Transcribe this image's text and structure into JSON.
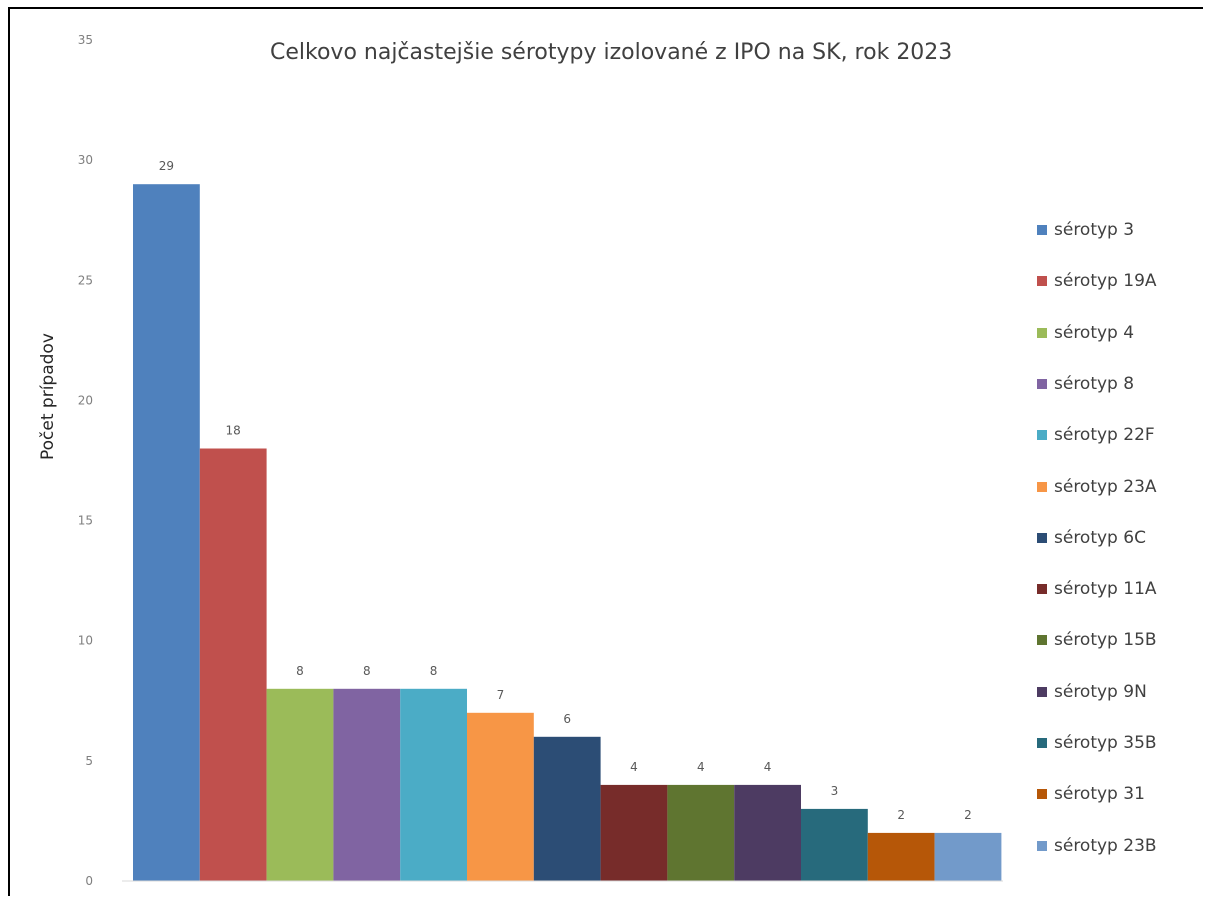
{
  "chart_data": {
    "type": "bar",
    "title": "Celkovo najčastejšie sérotypy izolované z IPO na SK, rok 2023",
    "ylabel": "Počet prípadov",
    "xlabel": "",
    "ylim": [
      0,
      35
    ],
    "yticks": [
      "0",
      "5",
      "10",
      "15",
      "20",
      "25",
      "30",
      "35"
    ],
    "grid": false,
    "legend_position": "right",
    "series": [
      {
        "name": "sérotyp 3",
        "value": 29,
        "color": "#4F81BD"
      },
      {
        "name": "sérotyp 19A",
        "value": 18,
        "color": "#C0504D"
      },
      {
        "name": "sérotyp 4",
        "value": 8,
        "color": "#9BBB59"
      },
      {
        "name": "sérotyp 8",
        "value": 8,
        "color": "#8064A2"
      },
      {
        "name": "sérotyp 22F",
        "value": 8,
        "color": "#4BACC6"
      },
      {
        "name": "sérotyp 23A",
        "value": 7,
        "color": "#F79646"
      },
      {
        "name": "sérotyp 6C",
        "value": 6,
        "color": "#2C4D75"
      },
      {
        "name": "sérotyp 11A",
        "value": 4,
        "color": "#772C2A"
      },
      {
        "name": "sérotyp 15B",
        "value": 4,
        "color": "#5F7530"
      },
      {
        "name": "sérotyp 9N",
        "value": 4,
        "color": "#4D3B62"
      },
      {
        "name": "sérotyp 35B",
        "value": 3,
        "color": "#276A7C"
      },
      {
        "name": "sérotyp 31",
        "value": 2,
        "color": "#B65708"
      },
      {
        "name": "sérotyp 23B",
        "value": 2,
        "color": "#729ACA"
      }
    ]
  }
}
